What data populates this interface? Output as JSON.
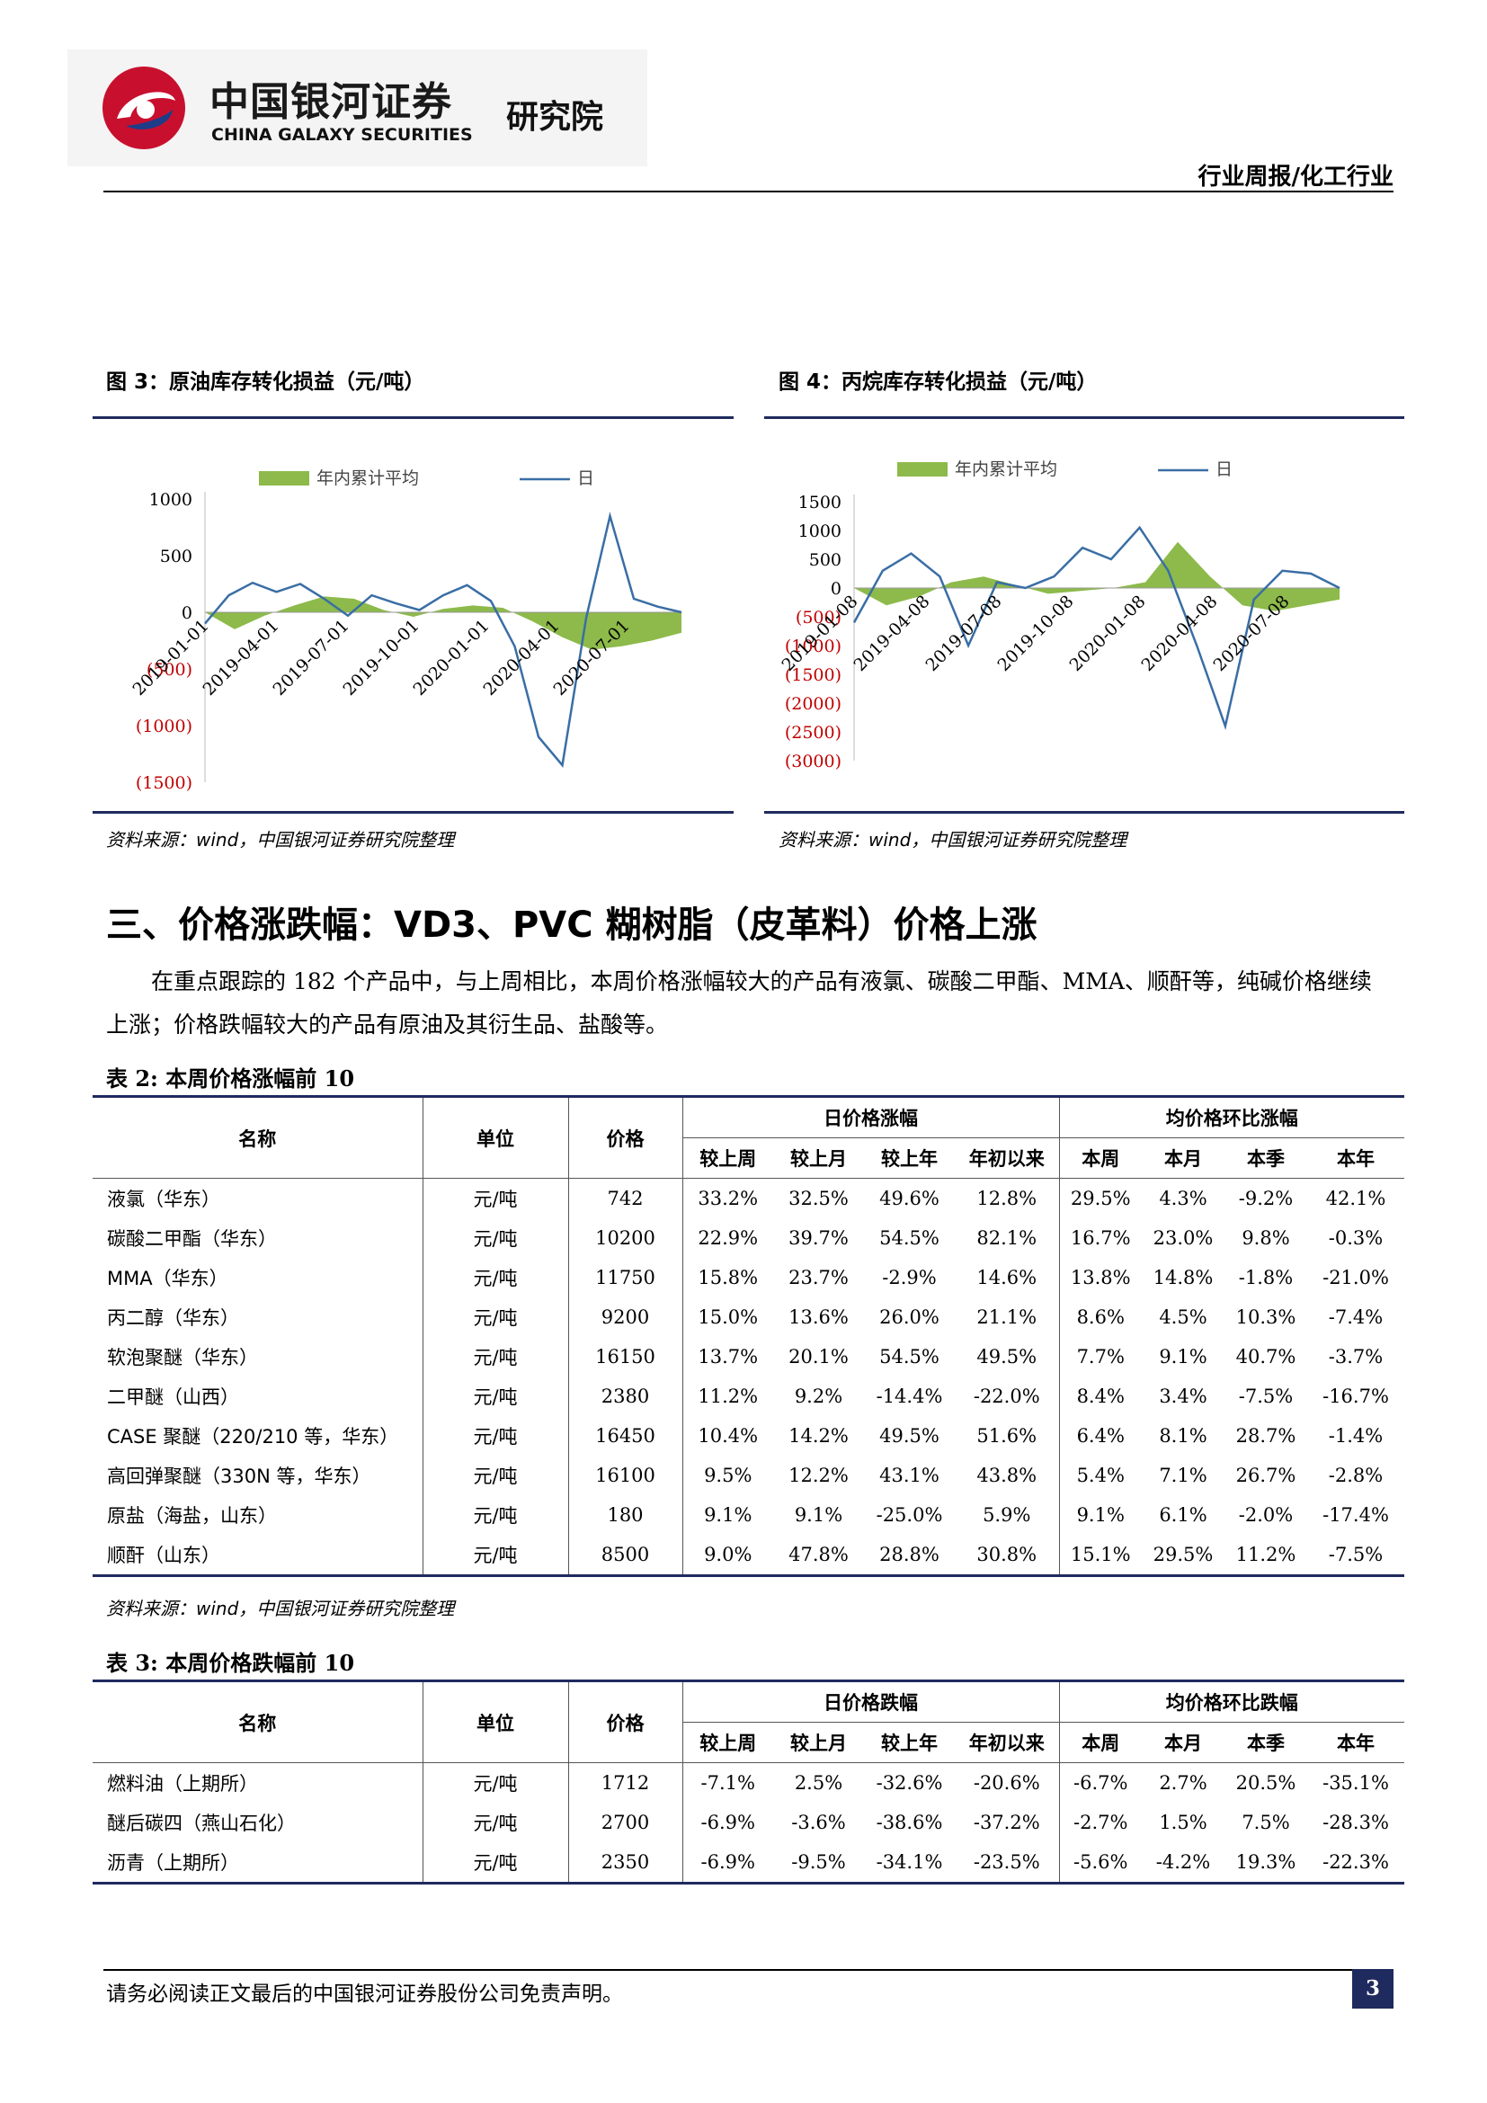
{
  "header": {
    "brand_cn": "中国银河证券",
    "brand_en": "CHINA GALAXY SECURITIES",
    "brand_inst": "研究院",
    "report_type": "行业周报/化工行业"
  },
  "figures": [
    {
      "title": "图 3：原油库存转化损益（元/吨）",
      "source": "资料来源：wind，中国银河证券研究院整理"
    },
    {
      "title": "图 4：丙烷库存转化损益（元/吨）",
      "source": "资料来源：wind，中国银河证券研究院整理"
    }
  ],
  "chart_data": [
    {
      "type": "area",
      "legend": [
        "年内累计平均",
        "日"
      ],
      "y_ticks": [
        "1000",
        "500",
        "0",
        "(500)",
        "(1000)",
        "(1500)"
      ],
      "ylim": [
        -1500,
        1000
      ],
      "x_ticks": [
        "2019-01-01",
        "2019-04-01",
        "2019-07-01",
        "2019-10-01",
        "2020-01-01",
        "2020-04-01",
        "2020-07-01"
      ],
      "series": [
        {
          "name": "年内累计平均",
          "values": [
            0,
            -150,
            -30,
            60,
            140,
            120,
            20,
            -40,
            30,
            60,
            40,
            -80,
            -220,
            -330,
            -300,
            -250,
            -180
          ]
        },
        {
          "name": "日",
          "values": [
            -100,
            150,
            260,
            180,
            250,
            120,
            -30,
            150,
            80,
            20,
            150,
            240,
            100,
            -300,
            -1100,
            -1350,
            -50,
            850,
            120,
            50,
            0
          ]
        }
      ]
    },
    {
      "type": "area",
      "legend": [
        "年内累计平均",
        "日"
      ],
      "y_ticks": [
        "1500",
        "1000",
        "500",
        "0",
        "(500)",
        "(1000)",
        "(1500)",
        "(2000)",
        "(2500)",
        "(3000)"
      ],
      "ylim": [
        -3000,
        1500
      ],
      "x_ticks": [
        "2019-01-08",
        "2019-04-08",
        "2019-07-08",
        "2019-10-08",
        "2020-01-08",
        "2020-04-08",
        "2020-07-08"
      ],
      "series": [
        {
          "name": "年内累计平均",
          "values": [
            0,
            -300,
            -150,
            100,
            200,
            50,
            -100,
            -50,
            0,
            100,
            800,
            200,
            -300,
            -400,
            -300,
            -200
          ]
        },
        {
          "name": "日",
          "values": [
            -600,
            300,
            600,
            200,
            -1000,
            100,
            0,
            200,
            700,
            500,
            1050,
            300,
            -1000,
            -2400,
            -200,
            300,
            250,
            0
          ]
        }
      ]
    }
  ],
  "section_title": "三、价格涨跌幅：VD3、PVC 糊树脂（皮革料）价格上涨",
  "paragraph": "在重点跟踪的 182 个产品中，与上周相比，本周价格涨幅较大的产品有液氯、碳酸二甲酯、MMA、顺酐等，纯碱价格继续上涨；价格跌幅较大的产品有原油及其衍生品、盐酸等。",
  "table2": {
    "title": "表 2:  本周价格涨幅前 10",
    "group1": "日价格涨幅",
    "group2": "均价格环比涨幅",
    "head": {
      "name": "名称",
      "unit": "单位",
      "price": "价格"
    },
    "sub": [
      "较上周",
      "较上月",
      "较上年",
      "年初以来",
      "本周",
      "本月",
      "本季",
      "本年"
    ],
    "rows": [
      [
        "液氯（华东）",
        "元/吨",
        "742",
        "33.2%",
        "32.5%",
        "49.6%",
        "12.8%",
        "29.5%",
        "4.3%",
        "-9.2%",
        "42.1%"
      ],
      [
        "碳酸二甲酯（华东）",
        "元/吨",
        "10200",
        "22.9%",
        "39.7%",
        "54.5%",
        "82.1%",
        "16.7%",
        "23.0%",
        "9.8%",
        "-0.3%"
      ],
      [
        "MMA（华东）",
        "元/吨",
        "11750",
        "15.8%",
        "23.7%",
        "-2.9%",
        "14.6%",
        "13.8%",
        "14.8%",
        "-1.8%",
        "-21.0%"
      ],
      [
        "丙二醇（华东）",
        "元/吨",
        "9200",
        "15.0%",
        "13.6%",
        "26.0%",
        "21.1%",
        "8.6%",
        "4.5%",
        "10.3%",
        "-7.4%"
      ],
      [
        "软泡聚醚（华东）",
        "元/吨",
        "16150",
        "13.7%",
        "20.1%",
        "54.5%",
        "49.5%",
        "7.7%",
        "9.1%",
        "40.7%",
        "-3.7%"
      ],
      [
        "二甲醚（山西）",
        "元/吨",
        "2380",
        "11.2%",
        "9.2%",
        "-14.4%",
        "-22.0%",
        "8.4%",
        "3.4%",
        "-7.5%",
        "-16.7%"
      ],
      [
        "CASE 聚醚（220/210 等，华东）",
        "元/吨",
        "16450",
        "10.4%",
        "14.2%",
        "49.5%",
        "51.6%",
        "6.4%",
        "8.1%",
        "28.7%",
        "-1.4%"
      ],
      [
        "高回弹聚醚（330N 等，华东）",
        "元/吨",
        "16100",
        "9.5%",
        "12.2%",
        "43.1%",
        "43.8%",
        "5.4%",
        "7.1%",
        "26.7%",
        "-2.8%"
      ],
      [
        "原盐（海盐，山东）",
        "元/吨",
        "180",
        "9.1%",
        "9.1%",
        "-25.0%",
        "5.9%",
        "9.1%",
        "6.1%",
        "-2.0%",
        "-17.4%"
      ],
      [
        "顺酐（山东）",
        "元/吨",
        "8500",
        "9.0%",
        "47.8%",
        "28.8%",
        "30.8%",
        "15.1%",
        "29.5%",
        "11.2%",
        "-7.5%"
      ]
    ],
    "source": "资料来源：wind，中国银河证券研究院整理"
  },
  "table3": {
    "title": "表 3:  本周价格跌幅前 10",
    "group1": "日价格跌幅",
    "group2": "均价格环比跌幅",
    "head": {
      "name": "名称",
      "unit": "单位",
      "price": "价格"
    },
    "sub": [
      "较上周",
      "较上月",
      "较上年",
      "年初以来",
      "本周",
      "本月",
      "本季",
      "本年"
    ],
    "rows": [
      [
        "燃料油（上期所）",
        "元/吨",
        "1712",
        "-7.1%",
        "2.5%",
        "-32.6%",
        "-20.6%",
        "-6.7%",
        "2.7%",
        "20.5%",
        "-35.1%"
      ],
      [
        "醚后碳四（燕山石化）",
        "元/吨",
        "2700",
        "-6.9%",
        "-3.6%",
        "-38.6%",
        "-37.2%",
        "-2.7%",
        "1.5%",
        "7.5%",
        "-28.3%"
      ],
      [
        "沥青（上期所）",
        "元/吨",
        "2350",
        "-6.9%",
        "-9.5%",
        "-34.1%",
        "-23.5%",
        "-5.6%",
        "-4.2%",
        "19.3%",
        "-22.3%"
      ]
    ]
  },
  "footer": {
    "text": "请务必阅读正文最后的中国银河证券股份公司免责声明。",
    "page": "3"
  },
  "colors": {
    "navy": "#1f2a5e",
    "area_green": "#8dba4a",
    "line_blue": "#3a6ea5",
    "neg_red": "#c00000",
    "logo_red": "#c8102e",
    "logo_blue": "#1f3c88"
  }
}
